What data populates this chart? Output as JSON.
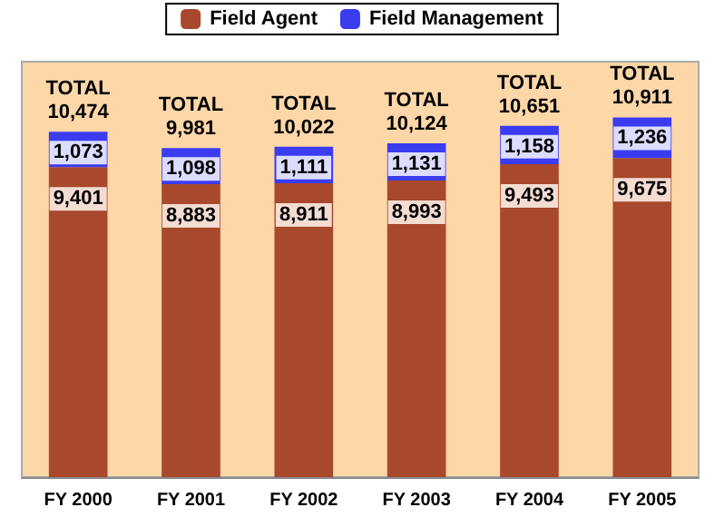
{
  "chart_data": {
    "type": "bar",
    "stacked": true,
    "legend": "top",
    "categories": [
      "FY 2000",
      "FY 2001",
      "FY 2002",
      "FY 2003",
      "FY 2004",
      "FY 2005"
    ],
    "series": [
      {
        "name": "Field Agent",
        "color": "#a8482c",
        "values": [
          9401,
          8883,
          8911,
          8993,
          9493,
          9675
        ],
        "value_labels": [
          "9,401",
          "8,883",
          "8,911",
          "8,993",
          "9,493",
          "9,675"
        ]
      },
      {
        "name": "Field Management",
        "color": "#3b3bf0",
        "values": [
          1073,
          1098,
          1111,
          1131,
          1158,
          1236
        ],
        "value_labels": [
          "1,073",
          "1,098",
          "1,111",
          "1,131",
          "1,158",
          "1,236"
        ]
      }
    ],
    "totals": [
      "TOTAL\n10,474",
      "TOTAL\n9,981",
      "TOTAL\n10,022",
      "TOTAL\n10,124",
      "TOTAL\n10,651",
      "TOTAL\n10,911"
    ]
  }
}
